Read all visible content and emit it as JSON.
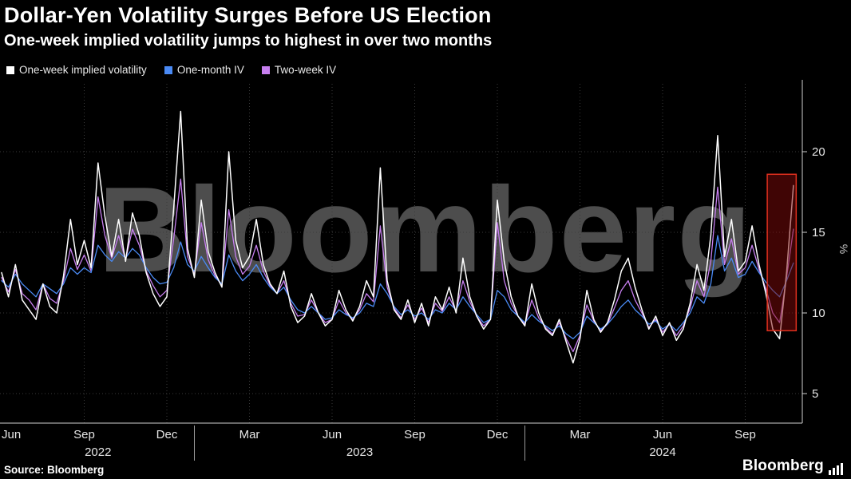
{
  "watermark": "Bloomberg",
  "footer": {
    "source": "Source: Bloomberg",
    "logo": "Bloomberg"
  },
  "chart_data": {
    "type": "line",
    "title": "Dollar-Yen Volatility Surges Before US Election",
    "subtitle": "One-week implied volatility jumps to highest in over two months",
    "ylabel": "%",
    "yticks": [
      5,
      10,
      15,
      20
    ],
    "ylim": [
      3.2,
      24.2
    ],
    "x_unit": "months since Jun 2022, points every quarter-month",
    "x_start_month": 0,
    "x_step_month": 0.25,
    "x_ticks": [
      {
        "m": 0,
        "label": "Jun"
      },
      {
        "m": 3,
        "label": "Sep"
      },
      {
        "m": 6,
        "label": "Dec"
      },
      {
        "m": 9,
        "label": "Mar"
      },
      {
        "m": 12,
        "label": "Jun"
      },
      {
        "m": 15,
        "label": "Sep"
      },
      {
        "m": 18,
        "label": "Dec"
      },
      {
        "m": 21,
        "label": "Mar"
      },
      {
        "m": 24,
        "label": "Jun"
      },
      {
        "m": 27,
        "label": "Sep"
      }
    ],
    "years": [
      {
        "label": "2022",
        "m_center": 3.5
      },
      {
        "label": "2023",
        "m_center": 13
      },
      {
        "label": "2024",
        "m_center": 24
      }
    ],
    "year_dividers_m": [
      7,
      19
    ],
    "series": [
      {
        "name": "One-week implied volatility",
        "color": "#ffffff",
        "values": [
          12.5,
          11.0,
          13.0,
          10.8,
          10.2,
          9.6,
          11.8,
          10.4,
          10.0,
          12.3,
          15.8,
          13.0,
          14.5,
          12.8,
          19.3,
          16.0,
          13.5,
          15.8,
          13.2,
          16.2,
          14.8,
          12.5,
          11.2,
          10.4,
          11.0,
          16.5,
          22.5,
          14.0,
          12.2,
          17.0,
          13.8,
          12.5,
          11.6,
          20.0,
          14.5,
          12.8,
          13.5,
          15.8,
          13.0,
          11.8,
          11.2,
          12.6,
          10.4,
          9.4,
          9.8,
          11.2,
          10.0,
          9.2,
          9.6,
          11.4,
          10.2,
          9.5,
          10.4,
          12.0,
          11.0,
          19.0,
          12.0,
          10.2,
          9.6,
          10.8,
          9.4,
          10.6,
          9.2,
          11.0,
          10.2,
          11.6,
          10.0,
          13.4,
          11.0,
          9.8,
          9.0,
          9.6,
          17.0,
          13.2,
          11.0,
          9.8,
          9.2,
          11.8,
          10.0,
          9.0,
          8.6,
          9.6,
          8.2,
          6.9,
          8.4,
          11.4,
          9.6,
          8.8,
          9.4,
          10.8,
          12.6,
          13.4,
          11.6,
          10.2,
          9.0,
          9.8,
          8.6,
          9.4,
          8.3,
          9.0,
          10.6,
          13.0,
          11.4,
          14.8,
          21.0,
          13.5,
          15.8,
          12.6,
          13.2,
          15.4,
          13.0,
          11.2,
          9.0,
          8.4,
          12.5,
          17.9
        ]
      },
      {
        "name": "One-month IV",
        "color": "#4a8af4",
        "values": [
          12.0,
          11.6,
          12.4,
          11.8,
          11.4,
          11.0,
          11.8,
          11.5,
          11.2,
          11.8,
          12.8,
          12.4,
          12.8,
          12.5,
          14.2,
          13.6,
          13.2,
          13.8,
          13.4,
          14.0,
          13.6,
          12.8,
          12.2,
          11.8,
          11.9,
          12.8,
          14.4,
          13.0,
          12.6,
          13.5,
          12.8,
          12.2,
          11.8,
          13.6,
          12.6,
          12.0,
          12.4,
          13.0,
          12.2,
          11.6,
          11.2,
          11.6,
          10.8,
          10.2,
          10.0,
          10.4,
          10.0,
          9.6,
          9.7,
          10.2,
          9.9,
          9.7,
          10.0,
          10.6,
          10.4,
          11.8,
          11.2,
          10.4,
          9.9,
          10.2,
          9.8,
          10.0,
          9.6,
          10.2,
          10.0,
          10.6,
          10.2,
          11.0,
          10.4,
          9.9,
          9.4,
          9.6,
          11.4,
          11.0,
          10.2,
          9.8,
          9.4,
          9.9,
          9.5,
          9.2,
          8.9,
          9.2,
          8.7,
          8.4,
          8.8,
          9.8,
          9.4,
          9.0,
          9.3,
          9.8,
          10.4,
          10.8,
          10.2,
          9.8,
          9.3,
          9.5,
          9.0,
          9.3,
          8.9,
          9.4,
          10.0,
          11.0,
          10.6,
          11.8,
          14.8,
          12.6,
          13.4,
          12.2,
          12.4,
          13.2,
          12.5,
          11.9,
          11.4,
          11.0,
          12.0,
          13.1
        ]
      },
      {
        "name": "Two-week IV",
        "color": "#c77ff0",
        "values": [
          12.2,
          11.3,
          12.7,
          11.2,
          10.8,
          10.2,
          11.8,
          10.9,
          10.6,
          12.0,
          14.0,
          12.7,
          13.6,
          12.6,
          17.2,
          14.8,
          13.4,
          14.8,
          13.3,
          15.2,
          14.2,
          12.6,
          11.7,
          11.0,
          11.4,
          14.6,
          18.3,
          13.5,
          12.4,
          15.6,
          13.3,
          12.3,
          11.7,
          16.4,
          13.5,
          12.4,
          12.9,
          14.2,
          12.6,
          11.7,
          11.2,
          12.0,
          10.6,
          9.8,
          9.9,
          10.8,
          10.0,
          9.4,
          9.6,
          10.8,
          10.0,
          9.6,
          10.2,
          11.2,
          10.7,
          15.4,
          11.6,
          10.3,
          9.7,
          10.5,
          9.6,
          10.3,
          9.4,
          10.6,
          10.1,
          11.0,
          10.1,
          12.0,
          10.7,
          9.8,
          9.2,
          9.6,
          15.6,
          12.0,
          10.6,
          9.8,
          9.3,
          10.8,
          9.7,
          9.1,
          8.7,
          9.4,
          8.4,
          7.6,
          8.6,
          10.5,
          9.5,
          8.9,
          9.3,
          10.3,
          11.4,
          12.0,
          10.8,
          10.0,
          9.1,
          9.6,
          8.8,
          9.3,
          8.6,
          9.2,
          10.3,
          12.0,
          11.0,
          13.2,
          17.8,
          13.0,
          14.6,
          12.4,
          12.8,
          14.2,
          12.7,
          11.5,
          10.0,
          9.4,
          12.2,
          15.2
        ]
      }
    ],
    "highlight_box": {
      "m_start": 27.8,
      "m_end": 28.85,
      "v_bottom": 8.9,
      "v_top": 18.6,
      "fill": "#7f0a0a",
      "border": "#e0301e"
    }
  }
}
